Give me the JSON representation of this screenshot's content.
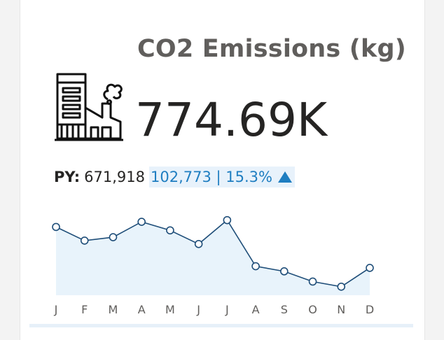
{
  "card": {
    "title": "CO2 Emissions (kg)",
    "kpi_value": "774.69K",
    "icon": "factory-icon",
    "py_label": "PY:",
    "py_value": "671,918",
    "delta_text": "102,773 | 15.3%",
    "delta_direction": "up",
    "colors": {
      "title": "#605e5c",
      "kpi": "#252423",
      "delta": "#1f7ec1",
      "delta_bg": "#e8f2fb",
      "line": "#1f4e79",
      "area": "#e8f3fb"
    }
  },
  "chart_data": {
    "type": "line",
    "categories": [
      "J",
      "F",
      "M",
      "A",
      "M",
      "J",
      "J",
      "A",
      "S",
      "O",
      "N",
      "D"
    ],
    "series": [
      {
        "values": [
          70,
          62,
          64,
          73,
          68,
          60,
          74,
          47,
          44,
          38,
          35,
          46
        ]
      }
    ],
    "ylim": [
      30,
      80
    ],
    "grid": false,
    "area_fill": true,
    "markers": true
  }
}
